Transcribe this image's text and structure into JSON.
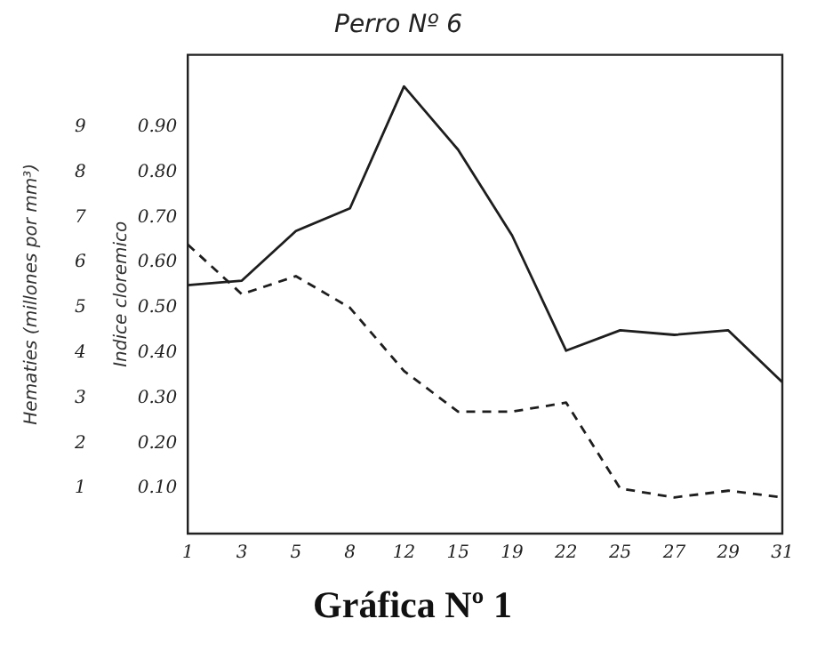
{
  "chart_data": {
    "type": "line",
    "title": "Perro Nº 6",
    "ylabel": "Hematies (millones por mm³)",
    "y2label": "Indice cloremico",
    "categories": [
      "1",
      "3",
      "5",
      "8",
      "12",
      "15",
      "19",
      "22",
      "25",
      "27",
      "29",
      "31"
    ],
    "series": [
      {
        "color": "#1e1e1e",
        "line_style": "solid",
        "values": [
          5.5,
          5.6,
          6.7,
          7.2,
          9.9,
          8.5,
          6.6,
          4.05,
          4.5,
          4.4,
          4.5,
          3.35
        ]
      },
      {
        "color": "#1e1e1e",
        "line_style": "dashed",
        "axis": "y2",
        "values": [
          0.64,
          0.53,
          0.57,
          0.5,
          0.36,
          0.27,
          0.27,
          0.29,
          0.1,
          0.08,
          0.095,
          0.08
        ]
      }
    ],
    "ylim": [
      0,
      10.6
    ],
    "yticks": [
      1,
      2,
      3,
      4,
      5,
      6,
      7,
      8,
      9
    ],
    "y2lim": [
      0,
      1.06
    ],
    "y2ticks": [
      {
        "value": 0.1,
        "label": "0.10"
      },
      {
        "value": 0.2,
        "label": "0.20"
      },
      {
        "value": 0.3,
        "label": "0.30"
      },
      {
        "value": 0.4,
        "label": "0.40"
      },
      {
        "value": 0.5,
        "label": "0.50"
      },
      {
        "value": 0.6,
        "label": "0.60"
      },
      {
        "value": 0.7,
        "label": "0.70"
      },
      {
        "value": 0.8,
        "label": "0.80"
      },
      {
        "value": 0.9,
        "label": "0.90"
      }
    ],
    "grid": false,
    "legend": false,
    "marker": "none",
    "annotations": [
      "Gráfica Nº 1"
    ]
  }
}
